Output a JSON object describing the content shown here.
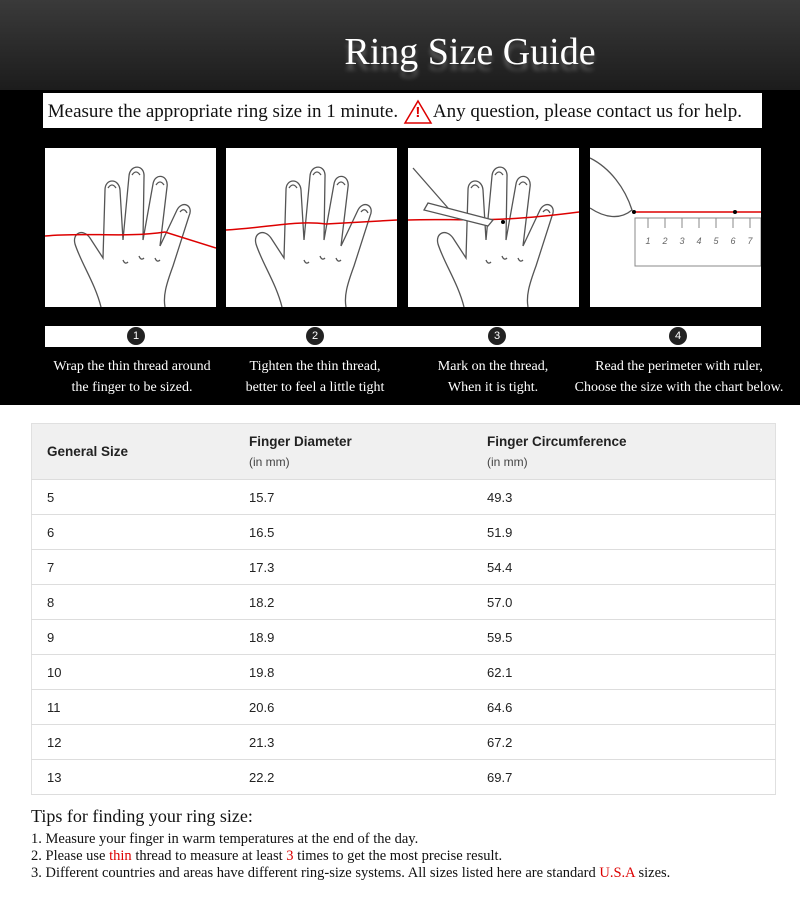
{
  "header": {
    "title": "Ring Size Guide"
  },
  "instruction": {
    "before": "Measure the appropriate ring size in 1 minute.",
    "icon": "!",
    "after": "Any question, please contact us for help."
  },
  "ruler_labels": [
    "1",
    "2",
    "3",
    "4",
    "5",
    "6",
    "7"
  ],
  "steps": [
    {
      "number": "1",
      "lines": [
        "Wrap the thin thread around",
        "the finger to be sized."
      ]
    },
    {
      "number": "2",
      "lines": [
        "Tighten the thin thread,",
        "better to feel a little tight"
      ]
    },
    {
      "number": "3",
      "lines": [
        "Mark on the thread,",
        "When it is tight."
      ]
    },
    {
      "number": "4",
      "lines": [
        "Read the perimeter with ruler,",
        "Choose the size with the chart below."
      ]
    }
  ],
  "table": {
    "header": [
      {
        "label": "General Size"
      },
      {
        "label": "Finger Diameter",
        "unit": "(in mm)"
      },
      {
        "label": "Finger Circumference",
        "unit": "(in mm)"
      }
    ],
    "rows": [
      [
        "5",
        "15.7",
        "49.3"
      ],
      [
        "6",
        "16.5",
        "51.9"
      ],
      [
        "7",
        "17.3",
        "54.4"
      ],
      [
        "8",
        "18.2",
        "57.0"
      ],
      [
        "9",
        "18.9",
        "59.5"
      ],
      [
        "10",
        "19.8",
        "62.1"
      ],
      [
        "11",
        "20.6",
        "64.6"
      ],
      [
        "12",
        "21.3",
        "67.2"
      ],
      [
        "13",
        "22.2",
        "69.7"
      ]
    ]
  },
  "tips": {
    "title": "Tips for finding your ring size:",
    "items": [
      [
        "1. Measure your finger in warm temperatures at the end of the day."
      ],
      [
        "2. Please use ",
        "thin",
        " thread to measure at least ",
        "3",
        " times to get the most precise result."
      ],
      [
        "3. Different countries and areas have different ring-size systems. All sizes listed here are standard ",
        "U.S.A",
        " sizes."
      ]
    ]
  }
}
